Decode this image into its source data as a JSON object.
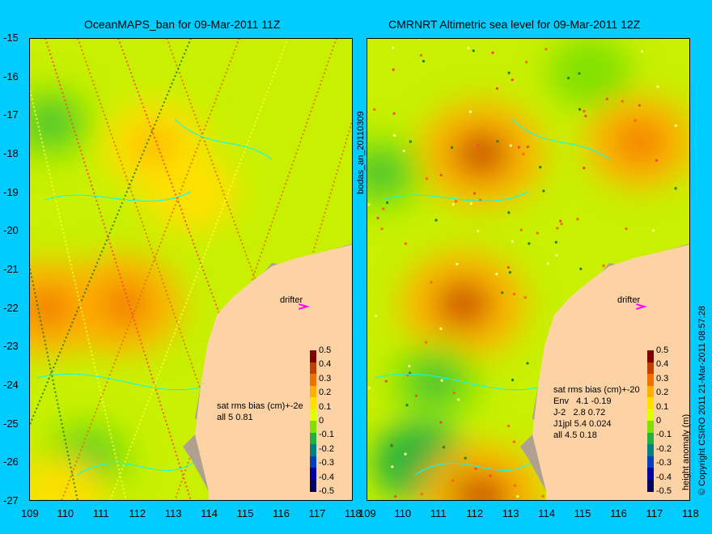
{
  "chart_data": [
    {
      "type": "heatmap",
      "title": "OceanMAPS_ban for 09-Mar-2011 11Z",
      "xlabel": "",
      "ylabel": "",
      "xlim": [
        109,
        118
      ],
      "ylim": [
        -27,
        -15
      ],
      "xticks": [
        "109",
        "110",
        "111",
        "112",
        "113",
        "114",
        "115",
        "116",
        "117",
        "118"
      ],
      "yticks": [
        "-15",
        "-16",
        "-17",
        "-18",
        "-19",
        "-20",
        "-21",
        "-22",
        "-23",
        "-24",
        "-25",
        "-26",
        "-27"
      ],
      "side_label": "bodas_an_20110309",
      "stats": [
        "sat rms bias (cm)+-2e",
        "all 5 0.81"
      ],
      "drifter_label": "drifter",
      "anomaly_blobs_m": [
        {
          "lon": 111.6,
          "lat": -21.9,
          "value": 0.25
        },
        {
          "lon": 112.5,
          "lat": -17.8,
          "value": 0.18
        },
        {
          "lon": 109.5,
          "lat": -22.0,
          "value": 0.22
        },
        {
          "lon": 110.6,
          "lat": -25.9,
          "value": -0.08
        },
        {
          "lon": 109.6,
          "lat": -17.2,
          "value": -0.07
        },
        {
          "lon": 113.5,
          "lat": -19.0,
          "value": 0.12
        },
        {
          "lon": 109.9,
          "lat": -26.8,
          "value": 0.1
        }
      ]
    },
    {
      "type": "heatmap",
      "title": "CMRNRT Altimetric sea level  for 09-Mar-2011 12Z",
      "xlabel": "",
      "ylabel": "",
      "xlim": [
        109,
        118
      ],
      "ylim": [
        -27,
        -15
      ],
      "xticks": [
        "109",
        "110",
        "111",
        "112",
        "113",
        "114",
        "115",
        "116",
        "117",
        "118"
      ],
      "stats": [
        "sat rms bias (cm)+-20",
        "Env   4.1 -0.19",
        "J-2   2.8 0.72",
        "J1jpl 5.4 0.024",
        "all 4.5 0.18"
      ],
      "drifter_label": "drifter",
      "anomaly_blobs_m": [
        {
          "lon": 112.2,
          "lat": -18.0,
          "value": 0.28
        },
        {
          "lon": 111.7,
          "lat": -21.9,
          "value": 0.28
        },
        {
          "lon": 116.6,
          "lat": -17.7,
          "value": 0.2
        },
        {
          "lon": 110.9,
          "lat": -23.9,
          "value": -0.1
        },
        {
          "lon": 110.5,
          "lat": -26.0,
          "value": -0.12
        },
        {
          "lon": 115.2,
          "lat": -15.9,
          "value": -0.06
        },
        {
          "lon": 109.4,
          "lat": -18.5,
          "value": -0.08
        },
        {
          "lon": 112.2,
          "lat": -26.9,
          "value": 0.28
        }
      ]
    }
  ],
  "colorbar": {
    "label": "height anomaly (m)",
    "ticks": [
      "0.5",
      "0.4",
      "0.3",
      "0.2",
      "0.1",
      "0",
      "-0.1",
      "-0.2",
      "-0.3",
      "-0.4",
      "-0.5"
    ],
    "colors": [
      "#800000",
      "#c04000",
      "#f07000",
      "#ffb000",
      "#ffe000",
      "#e0ff00",
      "#80e000",
      "#20b040",
      "#008080",
      "#0040c0",
      "#0000a0",
      "#000060"
    ]
  },
  "copyright": "© Copyright CSIRO 2011   21-Mar-2011 08:57:28",
  "colors": {
    "background": "#00ccff",
    "land": "#fdd2a4",
    "coast": "#b0a090",
    "contour": "#00ffff",
    "drifter": "#ff00ff"
  }
}
